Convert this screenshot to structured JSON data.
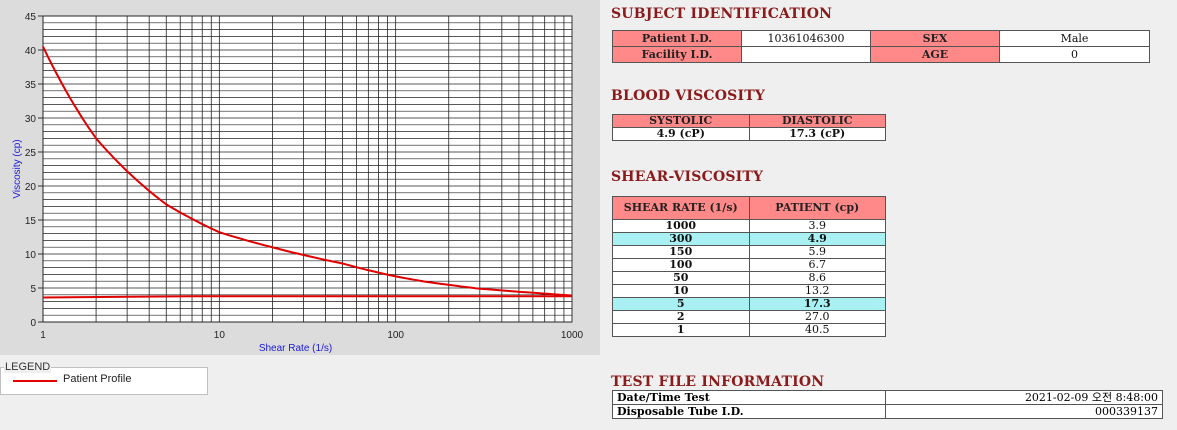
{
  "chart": {
    "y_axis_label": "Viscosity (cp)",
    "x_axis_label": "Shear Rate (1/s)",
    "legend_title": "LEGEND",
    "legend_item": "Patient Profile",
    "series_color": "#e00000"
  },
  "chart_data": {
    "type": "line",
    "title": "",
    "xlabel": "Shear Rate (1/s)",
    "ylabel": "Viscosity (cp)",
    "x_scale": "log",
    "xlim": [
      1,
      1000
    ],
    "ylim": [
      0,
      45
    ],
    "x_ticks": [
      "1",
      "10",
      "100",
      "1000"
    ],
    "y_ticks": [
      "0",
      "5",
      "10",
      "15",
      "20",
      "25",
      "30",
      "35",
      "40",
      "45"
    ],
    "grid": true,
    "series": [
      {
        "name": "Patient Profile",
        "x": [
          1,
          2,
          5,
          10,
          50,
          100,
          150,
          300,
          1000
        ],
        "y": [
          40.5,
          27.0,
          17.3,
          13.2,
          8.6,
          6.7,
          5.9,
          4.9,
          3.9
        ]
      },
      {
        "name": "Patient Profile",
        "x": [
          1,
          7,
          1000
        ],
        "y": [
          3.6,
          3.8,
          3.8
        ]
      }
    ]
  },
  "subject": {
    "title": "SUBJECT IDENTIFICATION",
    "patient_id_label": "Patient I.D.",
    "patient_id": "10361046300",
    "sex_label": "SEX",
    "sex": "Male",
    "facility_id_label": "Facility I.D.",
    "facility_id": "",
    "age_label": "AGE",
    "age": "0"
  },
  "blood_viscosity": {
    "title": "BLOOD VISCOSITY",
    "systolic_label": "SYSTOLIC",
    "systolic": "4.9 (cP)",
    "diastolic_label": "DIASTOLIC",
    "diastolic": "17.3 (cP)"
  },
  "shear_viscosity": {
    "title": "SHEAR-VISCOSITY",
    "col1": "SHEAR RATE (1/s)",
    "col2": "PATIENT (cp)",
    "rows": [
      {
        "rate": "1000",
        "value": "3.9",
        "hl": false
      },
      {
        "rate": "300",
        "value": "4.9",
        "hl": true
      },
      {
        "rate": "150",
        "value": "5.9",
        "hl": false
      },
      {
        "rate": "100",
        "value": "6.7",
        "hl": false
      },
      {
        "rate": "50",
        "value": "8.6",
        "hl": false
      },
      {
        "rate": "10",
        "value": "13.2",
        "hl": false
      },
      {
        "rate": "5",
        "value": "17.3",
        "hl": true
      },
      {
        "rate": "2",
        "value": "27.0",
        "hl": false
      },
      {
        "rate": "1",
        "value": "40.5",
        "hl": false
      }
    ]
  },
  "test_file": {
    "title": "TEST FILE INFORMATION",
    "datetime_label": "Date/Time Test",
    "datetime": "2021-02-09  오전 8:48:00",
    "tube_label": "Disposable Tube I.D.",
    "tube_id": "000339137"
  }
}
